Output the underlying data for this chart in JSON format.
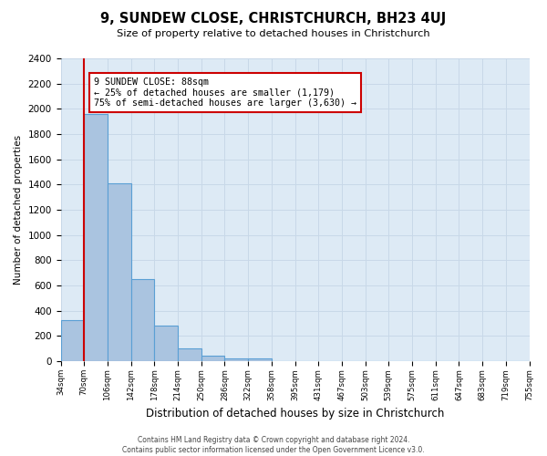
{
  "title": "9, SUNDEW CLOSE, CHRISTCHURCH, BH23 4UJ",
  "subtitle": "Size of property relative to detached houses in Christchurch",
  "xlabel": "Distribution of detached houses by size in Christchurch",
  "ylabel": "Number of detached properties",
  "bin_labels": [
    "34sqm",
    "70sqm",
    "106sqm",
    "142sqm",
    "178sqm",
    "214sqm",
    "250sqm",
    "286sqm",
    "322sqm",
    "358sqm",
    "395sqm",
    "431sqm",
    "467sqm",
    "503sqm",
    "539sqm",
    "575sqm",
    "611sqm",
    "647sqm",
    "683sqm",
    "719sqm",
    "755sqm"
  ],
  "bar_values": [
    325,
    1960,
    1410,
    650,
    280,
    105,
    45,
    25,
    20,
    0,
    0,
    0,
    0,
    0,
    0,
    0,
    0,
    0,
    0,
    0
  ],
  "bar_color": "#aac4e0",
  "bar_edge_color": "#5a9fd4",
  "red_line_x": 1,
  "annotation_text": "9 SUNDEW CLOSE: 88sqm\n← 25% of detached houses are smaller (1,179)\n75% of semi-detached houses are larger (3,630) →",
  "annotation_box_color": "#ffffff",
  "annotation_box_edge_color": "#cc0000",
  "red_line_color": "#cc0000",
  "grid_color": "#c8d8e8",
  "background_color": "#ddeaf5",
  "footer_text": "Contains HM Land Registry data © Crown copyright and database right 2024.\nContains public sector information licensed under the Open Government Licence v3.0.",
  "ylim": [
    0,
    2400
  ],
  "yticks": [
    0,
    200,
    400,
    600,
    800,
    1000,
    1200,
    1400,
    1600,
    1800,
    2000,
    2200,
    2400
  ]
}
